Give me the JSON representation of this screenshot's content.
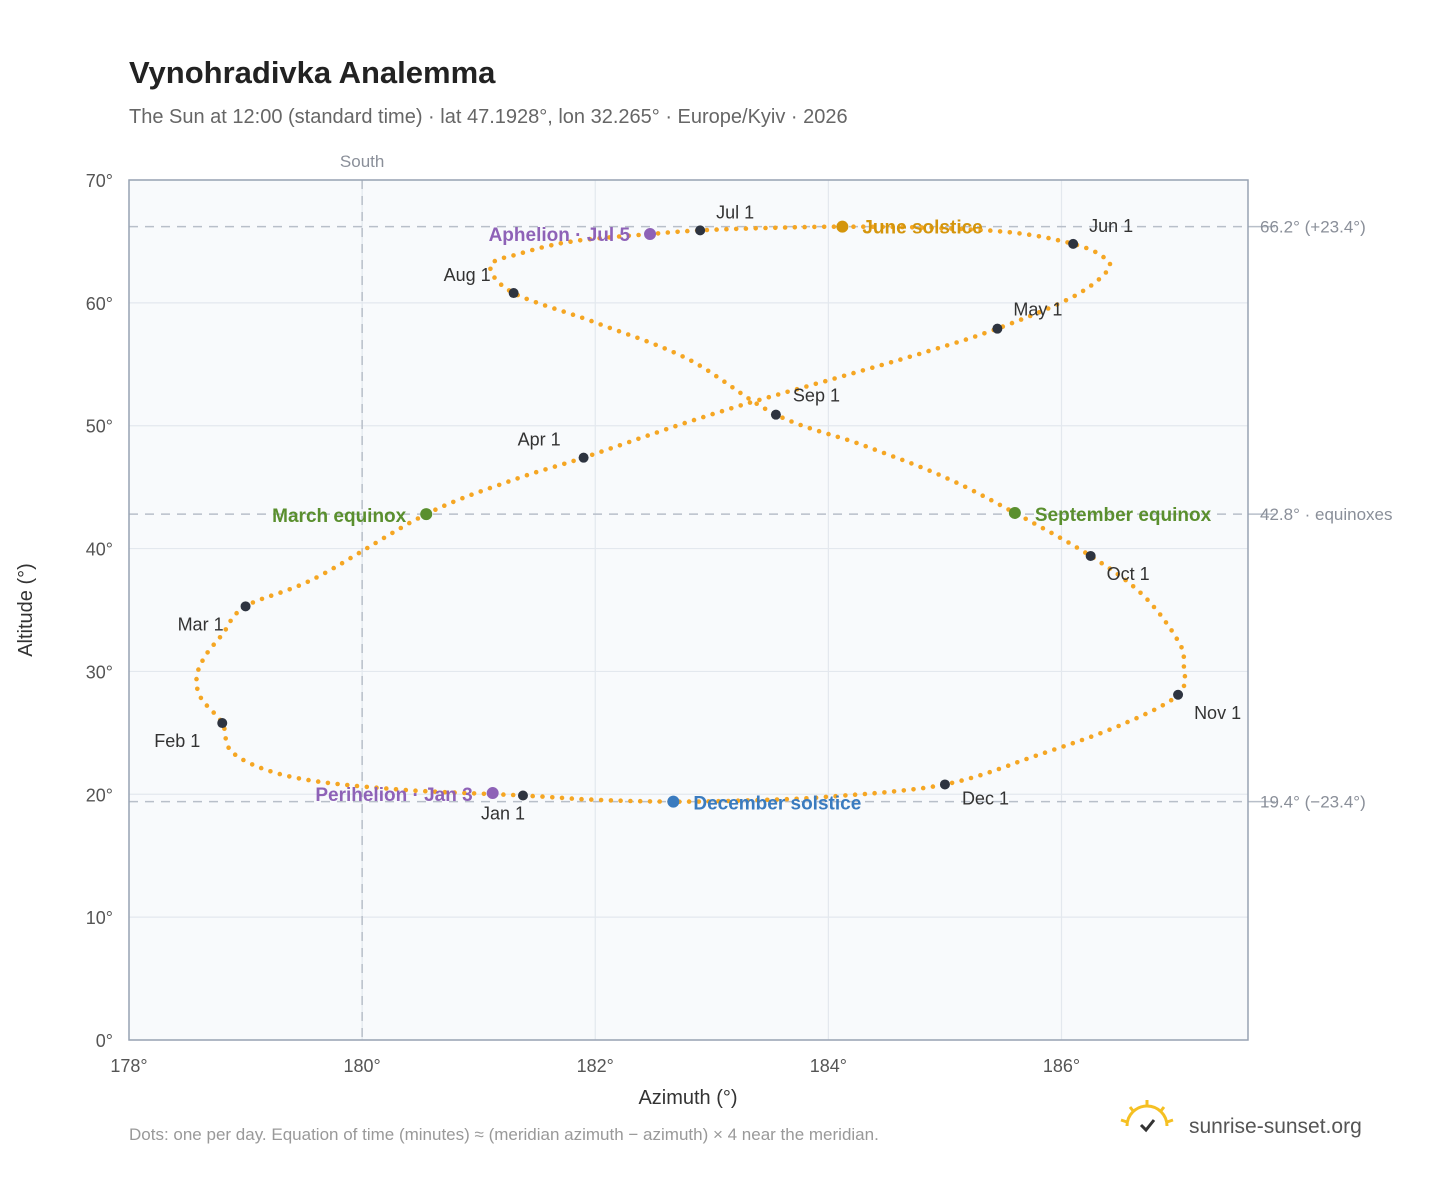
{
  "chart_data": {
    "type": "scatter",
    "title": "Vynohradivka Analemma",
    "subtitle": "The Sun at 12:00 (standard time) · lat 47.1928°, lon 32.265° · Europe/Kyiv · 2026",
    "xlabel": "Azimuth (°)",
    "ylabel": "Altitude (°)",
    "xlim": [
      178,
      187.6
    ],
    "ylim": [
      0,
      70
    ],
    "x_ticks": [
      178,
      180,
      182,
      184,
      186
    ],
    "x_tick_labels": [
      "178°",
      "180°",
      "182°",
      "184°",
      "186°"
    ],
    "y_ticks": [
      0,
      10,
      20,
      30,
      40,
      50,
      60,
      70
    ],
    "y_tick_labels": [
      "0°",
      "10°",
      "20°",
      "30°",
      "40°",
      "50°",
      "60°",
      "70°"
    ],
    "grid": true,
    "south_line": {
      "azimuth": 180,
      "label": "South"
    },
    "reference_lines": [
      {
        "altitude": 66.2,
        "label": "66.2° (+23.4°)"
      },
      {
        "altitude": 42.8,
        "label": "42.8° · equinoxes"
      },
      {
        "altitude": 19.4,
        "label": "19.4° (−23.4°)"
      }
    ],
    "path": {
      "description": "one dot per day",
      "color": "#f5a623",
      "points": [
        [
          181.38,
          19.9
        ],
        [
          180.3,
          20.4
        ],
        [
          179.4,
          21.4
        ],
        [
          178.9,
          23.3
        ],
        [
          178.8,
          25.8
        ],
        [
          178.62,
          27.8
        ],
        [
          178.58,
          29.5
        ],
        [
          178.65,
          31.2
        ],
        [
          178.8,
          33.0
        ],
        [
          179.0,
          35.3
        ],
        [
          179.6,
          37.6
        ],
        [
          180.55,
          42.8
        ],
        [
          181.3,
          45.6
        ],
        [
          181.9,
          47.4
        ],
        [
          182.7,
          50.0
        ],
        [
          183.3,
          51.8
        ],
        [
          184.0,
          53.7
        ],
        [
          184.8,
          55.9
        ],
        [
          185.45,
          57.9
        ],
        [
          186.1,
          60.5
        ],
        [
          186.4,
          62.7
        ],
        [
          186.35,
          63.8
        ],
        [
          186.1,
          64.8
        ],
        [
          185.6,
          65.7
        ],
        [
          184.9,
          66.1
        ],
        [
          184.12,
          66.2
        ],
        [
          183.5,
          66.1
        ],
        [
          182.9,
          65.9
        ],
        [
          182.47,
          65.6
        ],
        [
          181.8,
          65.0
        ],
        [
          181.35,
          64.0
        ],
        [
          181.1,
          63.0
        ],
        [
          181.3,
          60.8
        ],
        [
          182.0,
          58.4
        ],
        [
          182.8,
          55.4
        ],
        [
          183.55,
          50.9
        ],
        [
          184.3,
          48.4
        ],
        [
          185.0,
          45.8
        ],
        [
          185.6,
          42.9
        ],
        [
          186.25,
          39.4
        ],
        [
          186.7,
          36.2
        ],
        [
          187.0,
          32.5
        ],
        [
          187.05,
          30.5
        ],
        [
          187.0,
          28.1
        ],
        [
          186.5,
          25.6
        ],
        [
          185.8,
          23.2
        ],
        [
          185.0,
          20.8
        ],
        [
          184.0,
          19.8
        ],
        [
          183.3,
          19.5
        ],
        [
          182.67,
          19.4
        ],
        [
          182.0,
          19.55
        ],
        [
          181.38,
          19.9
        ]
      ]
    },
    "month_markers": [
      {
        "label": "Jan 1",
        "azimuth": 181.38,
        "altitude": 19.9
      },
      {
        "label": "Feb 1",
        "azimuth": 178.8,
        "altitude": 25.8
      },
      {
        "label": "Mar 1",
        "azimuth": 179.0,
        "altitude": 35.3
      },
      {
        "label": "Apr 1",
        "azimuth": 181.9,
        "altitude": 47.4
      },
      {
        "label": "May 1",
        "azimuth": 185.45,
        "altitude": 57.9
      },
      {
        "label": "Jun 1",
        "azimuth": 186.1,
        "altitude": 64.8
      },
      {
        "label": "Jul 1",
        "azimuth": 182.9,
        "altitude": 65.9
      },
      {
        "label": "Aug 1",
        "azimuth": 181.3,
        "altitude": 60.8
      },
      {
        "label": "Sep 1",
        "azimuth": 183.55,
        "altitude": 50.9
      },
      {
        "label": "Oct 1",
        "azimuth": 186.25,
        "altitude": 39.4
      },
      {
        "label": "Nov 1",
        "azimuth": 187.0,
        "altitude": 28.1
      },
      {
        "label": "Dec 1",
        "azimuth": 185.0,
        "altitude": 20.8
      }
    ],
    "events": [
      {
        "label": "June solstice",
        "azimuth": 184.12,
        "altitude": 66.2,
        "color": "#d4950c"
      },
      {
        "label": "Aphelion · Jul 5",
        "azimuth": 182.47,
        "altitude": 65.6,
        "color": "#8e62b7"
      },
      {
        "label": "March equinox",
        "azimuth": 180.55,
        "altitude": 42.8,
        "color": "#5a8f2e"
      },
      {
        "label": "September equinox",
        "azimuth": 185.6,
        "altitude": 42.9,
        "color": "#5a8f2e"
      },
      {
        "label": "Perihelion · Jan 3",
        "azimuth": 181.12,
        "altitude": 20.1,
        "color": "#8e62b7"
      },
      {
        "label": "December solstice",
        "azimuth": 182.67,
        "altitude": 19.4,
        "color": "#3a7bbf"
      }
    ],
    "footnote": "Dots: one per day. Equation of time (minutes) ≈ (meridian azimuth − azimuth) × 4 near the meridian.",
    "brand": "sunrise-sunset.org"
  }
}
